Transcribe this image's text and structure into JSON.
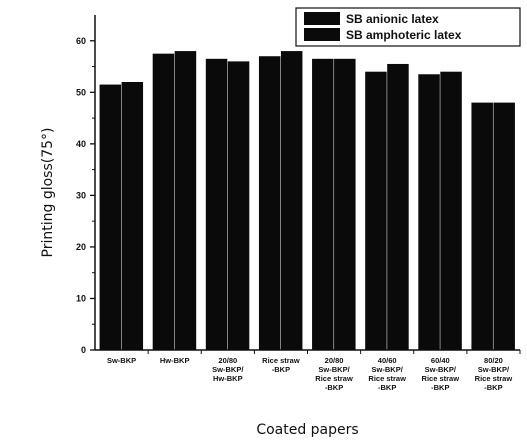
{
  "chart_data": {
    "type": "bar",
    "categories": [
      [
        "Sw-BKP"
      ],
      [
        "Hw-BKP"
      ],
      [
        "20/80",
        "Sw-BKP/",
        "Hw-BKP"
      ],
      [
        "Rice straw",
        "-BKP"
      ],
      [
        "20/80",
        "Sw-BKP/",
        "Rice straw",
        "-BKP"
      ],
      [
        "40/60",
        "Sw-BKP/",
        "Rice straw",
        "-BKP"
      ],
      [
        "60/40",
        "Sw-BKP/",
        "Rice straw",
        "-BKP"
      ],
      [
        "80/20",
        "Sw-BKP/",
        "Rice straw",
        "-BKP"
      ]
    ],
    "series": [
      {
        "name": "SB anionic latex",
        "values": [
          51.5,
          57.5,
          56.5,
          57,
          56.5,
          54,
          53.5,
          48
        ]
      },
      {
        "name": "SB amphoteric latex",
        "values": [
          52,
          58,
          56,
          58,
          56.5,
          55.5,
          54,
          48
        ]
      }
    ],
    "ylabel": "Printing gloss(75°)",
    "xlabel": "Coated papers",
    "ylim": [
      0,
      65
    ],
    "yticks": [
      0,
      10,
      20,
      30,
      40,
      50,
      60
    ],
    "legend_position": "top-right",
    "grid": false,
    "bar_color": "#0a0a0a"
  }
}
